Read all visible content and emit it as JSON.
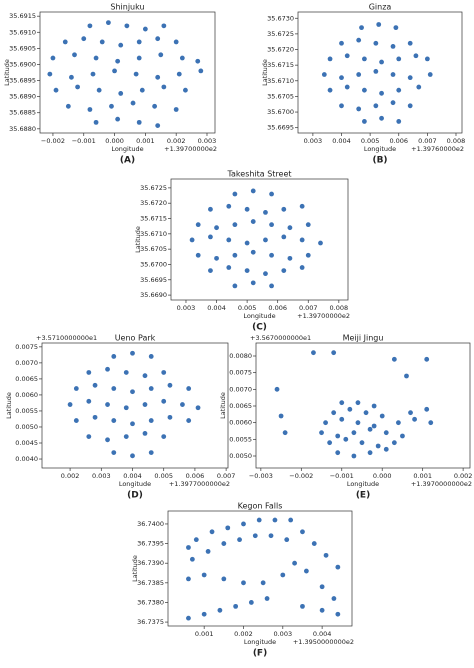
{
  "chart_data": [
    {
      "type": "scatter",
      "title": "Shinjuku",
      "xlabel": "Longitude",
      "ylabel": "Latitude",
      "x_offset_label": "+1.39700000e2",
      "caption": "(A)",
      "color": "#3c72b4",
      "xlim": [
        -0.00242,
        0.00326
      ],
      "ylim": [
        35.68787,
        35.69163
      ],
      "xticks": [
        {
          "value": -0.002,
          "label": "−0.002"
        },
        {
          "value": -0.001,
          "label": "−0.001"
        },
        {
          "value": 0,
          "label": "0.000"
        },
        0.001,
        0.002,
        0.003
      ],
      "yticks": [
        {
          "value": 35.688,
          "label": "35.6880"
        },
        35.6885,
        {
          "value": 35.689,
          "label": "35.6890"
        },
        35.6895,
        {
          "value": 35.69,
          "label": "35.6900"
        },
        35.6905,
        {
          "value": 35.691,
          "label": "35.6910"
        },
        35.6915
      ],
      "x": [
        -0.0008,
        -0.0002,
        0.0004,
        0.001,
        0.0016,
        -0.0016,
        -0.001,
        -0.0004,
        0.0002,
        0.0008,
        0.0014,
        0.002,
        -0.002,
        -0.0013,
        -0.0006,
        0.0001,
        0.0008,
        0.0015,
        0.0022,
        0.0027,
        -0.0021,
        -0.0014,
        -0.0007,
        0,
        0.0007,
        0.0014,
        0.0021,
        0.0028,
        -0.0019,
        -0.0012,
        -0.0005,
        0.0002,
        0.0009,
        0.0016,
        0.0023,
        -0.0015,
        -0.0008,
        -0.0001,
        0.0006,
        0.0013,
        0.002,
        -0.0006,
        0.0001,
        0.0008,
        0.0014
      ],
      "y": [
        35.6912,
        35.6913,
        35.6912,
        35.6911,
        35.6912,
        35.6907,
        35.6908,
        35.6907,
        35.6906,
        35.6907,
        35.6908,
        35.6907,
        35.6902,
        35.6903,
        35.6902,
        35.6901,
        35.6902,
        35.6903,
        35.6902,
        35.6901,
        35.6897,
        35.6896,
        35.6897,
        35.6898,
        35.6897,
        35.6896,
        35.6897,
        35.6898,
        35.6892,
        35.6893,
        35.6892,
        35.6891,
        35.6892,
        35.6893,
        35.6892,
        35.6887,
        35.6886,
        35.6887,
        35.6888,
        35.6887,
        35.6886,
        35.6882,
        35.6883,
        35.6882,
        35.6881
      ]
    },
    {
      "type": "scatter",
      "title": "Ginza",
      "xlabel": "Longitude",
      "ylabel": "Latitude",
      "x_offset_label": "+1.39760000e2",
      "caption": "(B)",
      "color": "#3c72b4",
      "xlim": [
        0.00248,
        0.00821
      ],
      "ylim": [
        35.66933,
        35.6732
      ],
      "xticks": [
        0.003,
        0.004,
        0.005,
        0.006,
        0.007,
        0.008
      ],
      "yticks": [
        35.6695,
        {
          "value": 35.67,
          "label": "35.6700"
        },
        35.6705,
        {
          "value": 35.671,
          "label": "35.6710"
        },
        35.6715,
        {
          "value": 35.672,
          "label": "35.6720"
        },
        35.6725,
        {
          "value": 35.673,
          "label": "35.6730"
        }
      ],
      "x": [
        0.0047,
        0.0053,
        0.0059,
        0.004,
        0.0046,
        0.0052,
        0.0058,
        0.0064,
        0.0036,
        0.0042,
        0.0048,
        0.0054,
        0.006,
        0.0066,
        0.007,
        0.0034,
        0.004,
        0.0046,
        0.0052,
        0.0058,
        0.0064,
        0.0071,
        0.0036,
        0.0042,
        0.0048,
        0.0054,
        0.006,
        0.0067,
        0.004,
        0.0046,
        0.0052,
        0.0058,
        0.0064,
        0.0048,
        0.0054,
        0.006
      ],
      "y": [
        35.6727,
        35.6728,
        35.6727,
        35.6722,
        35.6723,
        35.6722,
        35.6721,
        35.6722,
        35.6717,
        35.6718,
        35.6717,
        35.6716,
        35.6717,
        35.6718,
        35.6717,
        35.6712,
        35.6711,
        35.6712,
        35.6713,
        35.6712,
        35.6711,
        35.6712,
        35.6707,
        35.6708,
        35.6707,
        35.6706,
        35.6707,
        35.6708,
        35.6702,
        35.6701,
        35.6702,
        35.6703,
        35.6702,
        35.6697,
        35.6698,
        35.6697
      ]
    },
    {
      "type": "scatter",
      "title": "Takeshita Street",
      "xlabel": "Longitude",
      "ylabel": "Latitude",
      "x_offset_label": "+1.39700000e2",
      "caption": "(C)",
      "color": "#3c72b4",
      "xlim": [
        0.00251,
        0.0083
      ],
      "ylim": [
        35.66884,
        35.67279
      ],
      "xticks": [
        0.003,
        0.004,
        0.005,
        0.006,
        0.007,
        0.008
      ],
      "yticks": [
        {
          "value": 35.669,
          "label": "35.6690"
        },
        35.6695,
        {
          "value": 35.67,
          "label": "35.6700"
        },
        35.6705,
        {
          "value": 35.671,
          "label": "35.6710"
        },
        35.6715,
        {
          "value": 35.672,
          "label": "35.6720"
        },
        35.6725
      ],
      "x": [
        0.0046,
        0.0052,
        0.0058,
        0.0038,
        0.0044,
        0.005,
        0.0056,
        0.0062,
        0.0068,
        0.0034,
        0.004,
        0.0046,
        0.0052,
        0.0058,
        0.0064,
        0.007,
        0.0032,
        0.0038,
        0.0044,
        0.005,
        0.0056,
        0.0062,
        0.0068,
        0.0074,
        0.0034,
        0.004,
        0.0046,
        0.0052,
        0.0058,
        0.0064,
        0.007,
        0.0038,
        0.0044,
        0.005,
        0.0056,
        0.0062,
        0.0068,
        0.0046,
        0.0052,
        0.0058
      ],
      "y": [
        35.6723,
        35.6724,
        35.6723,
        35.6718,
        35.6719,
        35.6718,
        35.6717,
        35.6718,
        35.6719,
        35.6713,
        35.6712,
        35.6713,
        35.6714,
        35.6713,
        35.6712,
        35.6713,
        35.6708,
        35.6709,
        35.6708,
        35.6707,
        35.6708,
        35.6709,
        35.6708,
        35.6707,
        35.6703,
        35.6702,
        35.6703,
        35.6704,
        35.6703,
        35.6702,
        35.6703,
        35.6698,
        35.6699,
        35.6698,
        35.6697,
        35.6698,
        35.6699,
        35.6693,
        35.6694,
        35.6693
      ]
    },
    {
      "type": "scatter",
      "title": "Ueno Park",
      "xlabel": "Longitude",
      "ylabel": "Latitude",
      "x_offset_label": "+1.3977000000e2",
      "y_offset_label": "+3.5710000000e1",
      "caption": "(D)",
      "color": "#3c72b4",
      "xlim": [
        0.0011,
        0.00706
      ],
      "ylim": [
        0.00372,
        0.00762
      ],
      "xticks": [
        0.002,
        0.003,
        0.004,
        0.005,
        0.006,
        0.007
      ],
      "yticks": [
        {
          "value": 0.004,
          "label": "0.0040"
        },
        0.0045,
        {
          "value": 0.005,
          "label": "0.0050"
        },
        0.0055,
        {
          "value": 0.006,
          "label": "0.0060"
        },
        0.0065,
        {
          "value": 0.007,
          "label": "0.0070"
        },
        0.0075
      ],
      "x": [
        0.0034,
        0.004,
        0.0046,
        0.0026,
        0.0032,
        0.0038,
        0.0044,
        0.005,
        0.0022,
        0.0028,
        0.0034,
        0.004,
        0.0046,
        0.0052,
        0.0058,
        0.002,
        0.0026,
        0.0032,
        0.0038,
        0.0044,
        0.005,
        0.0056,
        0.0061,
        0.0022,
        0.0028,
        0.0034,
        0.004,
        0.0046,
        0.0052,
        0.0058,
        0.0026,
        0.0032,
        0.0038,
        0.0044,
        0.005,
        0.0034,
        0.004,
        0.0046
      ],
      "y": [
        0.0072,
        0.0073,
        0.0072,
        0.0067,
        0.0068,
        0.0067,
        0.0066,
        0.0067,
        0.0062,
        0.0063,
        0.0062,
        0.0061,
        0.0062,
        0.0063,
        0.0062,
        0.0057,
        0.0058,
        0.0057,
        0.0056,
        0.0057,
        0.0058,
        0.0057,
        0.0056,
        0.0052,
        0.0053,
        0.0052,
        0.0051,
        0.0052,
        0.0053,
        0.0052,
        0.0047,
        0.0046,
        0.0047,
        0.0048,
        0.0047,
        0.0042,
        0.0041,
        0.0042
      ]
    },
    {
      "type": "scatter",
      "title": "Meiji Jingu",
      "xlabel": "Longitude",
      "ylabel": "Latitude",
      "x_offset_label": "+1.3970000000e2",
      "y_offset_label": "+3.5670000000e1",
      "caption": "(E)",
      "color": "#3c72b4",
      "xlim": [
        -0.00312,
        0.00217
      ],
      "ylim": [
        0.00464,
        0.00839
      ],
      "xticks": [
        {
          "value": -0.003,
          "label": "−0.003"
        },
        {
          "value": -0.002,
          "label": "−0.002"
        },
        {
          "value": -0.001,
          "label": "−0.001"
        },
        {
          "value": 0,
          "label": "0.000"
        },
        0.001,
        0.002
      ],
      "yticks": [
        {
          "value": 0.005,
          "label": "0.0050"
        },
        0.0055,
        {
          "value": 0.006,
          "label": "0.0060"
        },
        0.0065,
        {
          "value": 0.007,
          "label": "0.0070"
        },
        0.0075,
        {
          "value": 0.008,
          "label": "0.0080"
        }
      ],
      "x": [
        -0.0026,
        -0.0025,
        -0.0024,
        -0.0017,
        -0.0012,
        0.0003,
        0.0006,
        0.0011,
        -0.001,
        -0.0006,
        -0.0002,
        -0.0012,
        -0.0008,
        -0.0004,
        0,
        0.0007,
        0.0011,
        -0.0014,
        -0.001,
        -0.0006,
        -0.0002,
        0.0004,
        0.0008,
        0.0012,
        -0.0015,
        -0.0011,
        -0.0007,
        -0.0003,
        0.0001,
        0.0005,
        -0.0013,
        -0.0009,
        -0.0005,
        -0.0001,
        0.0003,
        -0.0011,
        -0.0007,
        -0.0003,
        0.0001
      ],
      "y": [
        0.007,
        0.0062,
        0.0057,
        0.0081,
        0.0081,
        0.0079,
        0.0074,
        0.0079,
        0.0066,
        0.0066,
        0.0065,
        0.0063,
        0.0064,
        0.0063,
        0.0062,
        0.0063,
        0.0064,
        0.006,
        0.0061,
        0.006,
        0.0059,
        0.006,
        0.0061,
        0.006,
        0.0057,
        0.0056,
        0.0057,
        0.0058,
        0.0057,
        0.0056,
        0.0054,
        0.0055,
        0.0054,
        0.0053,
        0.0054,
        0.0051,
        0.005,
        0.0051,
        0.0052
      ]
    },
    {
      "type": "scatter",
      "title": "Kegon Falls",
      "xlabel": "Longitude",
      "ylabel": "Latitude",
      "x_offset_label": "+1.3950000000e2",
      "caption": "(F)",
      "color": "#3c72b4",
      "xlim": [
        8e-05,
        0.00476
      ],
      "ylim": [
        36.7374,
        36.74033
      ],
      "xticks": [
        0.001,
        0.002,
        0.003,
        0.004
      ],
      "yticks": [
        36.7375,
        {
          "value": 36.738,
          "label": "36.7380"
        },
        36.7385,
        {
          "value": 36.739,
          "label": "36.7390"
        },
        36.7395,
        {
          "value": 36.74,
          "label": "36.7400"
        }
      ],
      "x": [
        0.0006,
        0.0008,
        0.0012,
        0.0016,
        0.002,
        0.0024,
        0.0028,
        0.0032,
        0.0035,
        0.0038,
        0.0041,
        0.0044,
        0.0007,
        0.0011,
        0.0015,
        0.0019,
        0.0023,
        0.0027,
        0.0031,
        0.0006,
        0.001,
        0.0015,
        0.002,
        0.0025,
        0.003,
        0.0033,
        0.0036,
        0.004,
        0.0043,
        0.0006,
        0.001,
        0.0014,
        0.0018,
        0.0022,
        0.0026,
        0.0035,
        0.004,
        0.0044
      ],
      "y": [
        36.7394,
        36.7396,
        36.7398,
        36.7399,
        36.74,
        36.7401,
        36.7401,
        36.7401,
        36.7398,
        36.7395,
        36.7392,
        36.7389,
        36.7391,
        36.7393,
        36.7395,
        36.7396,
        36.7397,
        36.7397,
        36.7396,
        36.7386,
        36.7387,
        36.7386,
        36.7385,
        36.7385,
        36.7387,
        36.739,
        36.7388,
        36.7384,
        36.7381,
        36.7376,
        36.7377,
        36.7378,
        36.7379,
        36.738,
        36.7381,
        36.7379,
        36.7378,
        36.7377
      ]
    }
  ]
}
